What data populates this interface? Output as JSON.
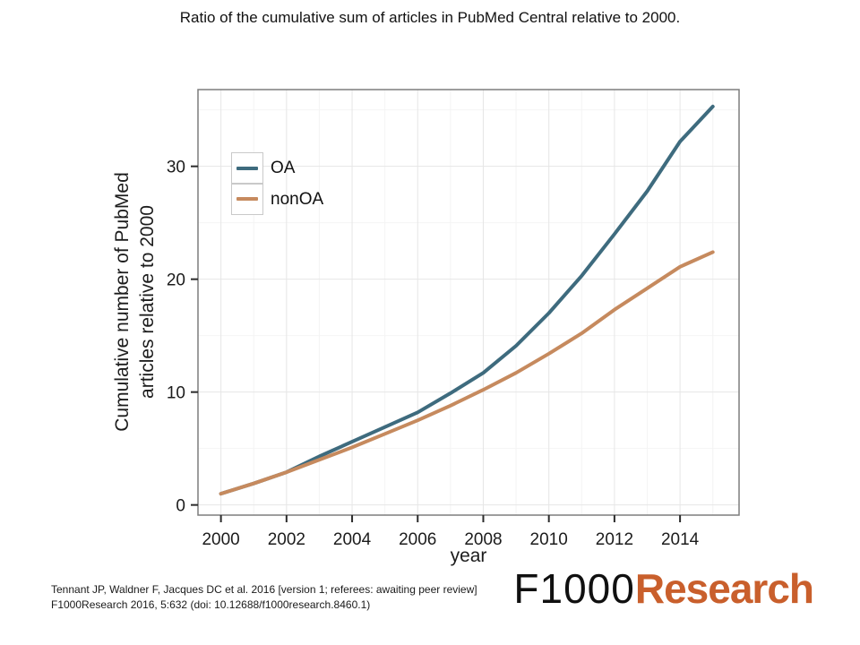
{
  "slide": {
    "title": "Ratio of the cumulative sum of articles in PubMed Central relative to 2000.",
    "footer": {
      "citation_line1": "Tennant JP, Waldner F, Jacques DC et al. 2016 [version 1; referees: awaiting peer review]",
      "citation_line2": "F1000Research 2016, 5:632 (doi: 10.12688/f1000research.8460.1)"
    },
    "logo": {
      "black_text": "F1000",
      "orange_text": "Research",
      "orange_color": "#c95f2c"
    }
  },
  "chart_data": {
    "type": "line",
    "title": "",
    "xlabel": "year",
    "ylabel": "Cumulative number of PubMed articles relative to 2000",
    "ylabel_lines": [
      "Cumulative number of PubMed",
      "articles relative to 2000"
    ],
    "x": [
      2000,
      2001,
      2002,
      2003,
      2004,
      2005,
      2006,
      2007,
      2008,
      2009,
      2010,
      2011,
      2012,
      2013,
      2014,
      2015
    ],
    "series": [
      {
        "name": "OA",
        "color": "#3e6b7e",
        "values": [
          1.0,
          1.9,
          2.9,
          4.3,
          5.6,
          6.9,
          8.2,
          9.9,
          11.7,
          14.1,
          17.0,
          20.3,
          24.0,
          27.8,
          32.2,
          35.3
        ]
      },
      {
        "name": "nonOA",
        "color": "#c68a5e",
        "values": [
          1.0,
          1.9,
          2.9,
          4.0,
          5.1,
          6.3,
          7.5,
          8.8,
          10.2,
          11.7,
          13.4,
          15.2,
          17.3,
          19.2,
          21.1,
          22.4
        ]
      }
    ],
    "x_ticks": [
      2000,
      2002,
      2004,
      2006,
      2008,
      2010,
      2012,
      2014
    ],
    "y_ticks": [
      0,
      10,
      20,
      30
    ],
    "x_minor_ticks": [
      2001,
      2003,
      2005,
      2007,
      2009,
      2011,
      2013,
      2015
    ],
    "y_minor_ticks": [
      5,
      15,
      25,
      35
    ],
    "xlim": [
      1999.3,
      2015.8
    ],
    "ylim": [
      -0.9,
      36.8
    ],
    "grid": true,
    "legend_position": "inside-top-left",
    "line_width": 4,
    "colors": {
      "grid_major": "#e6e6e6",
      "grid_minor": "#f4f4f4",
      "panel_border": "#7d7d7d",
      "tick": "#2b2b2b"
    }
  }
}
